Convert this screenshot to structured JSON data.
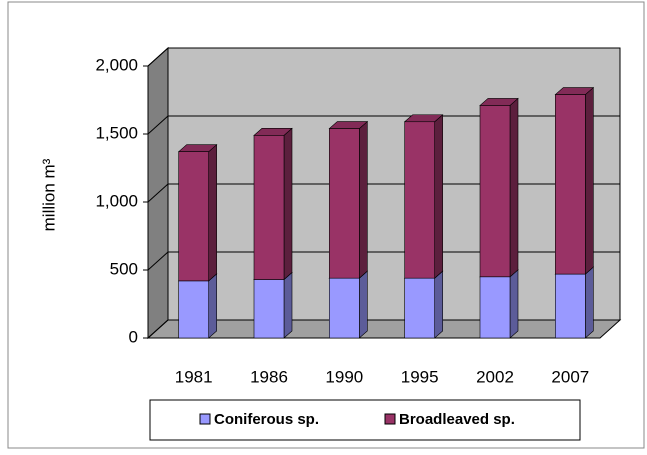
{
  "chart_data": {
    "type": "stacked-bar-3d",
    "y_label": "million m³",
    "categories": [
      "1981",
      "1986",
      "1990",
      "1995",
      "2002",
      "2007"
    ],
    "series": [
      {
        "name": "Coniferous sp.",
        "color": "#9999ff",
        "values": [
          420,
          430,
          440,
          440,
          450,
          470
        ]
      },
      {
        "name": "Broadleaved sp.",
        "color": "#993366",
        "values": [
          950,
          1060,
          1100,
          1150,
          1260,
          1320
        ]
      }
    ],
    "ylim": [
      0,
      2000
    ],
    "yticks": [
      0,
      {
        "value": 500,
        "label": "500"
      },
      {
        "value": 1000,
        "label": "1,000"
      },
      {
        "value": 1500,
        "label": "1,500"
      },
      {
        "value": 2000,
        "label": "2,000"
      }
    ],
    "grid": true,
    "legend": "bottom"
  }
}
